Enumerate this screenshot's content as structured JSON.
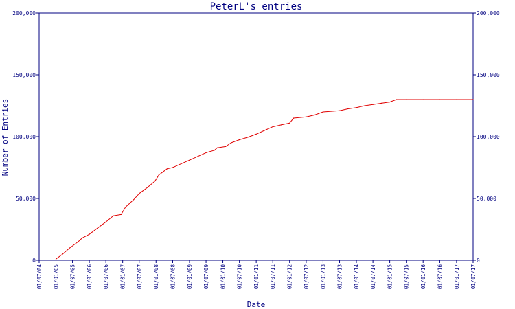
{
  "chart_data": {
    "type": "line",
    "title": "PeterL's entries",
    "xlabel": "Date",
    "ylabel": "Number of Entries",
    "ylim": [
      0,
      200000
    ],
    "xlim": [
      "2004-07-01",
      "2017-07-01"
    ],
    "y_ticks": [
      {
        "value": 0,
        "label": "0"
      },
      {
        "value": 50000,
        "label": "50,000"
      },
      {
        "value": 100000,
        "label": "100,000"
      },
      {
        "value": 150000,
        "label": "150,000"
      },
      {
        "value": 200000,
        "label": "200,000"
      }
    ],
    "x_ticks": [
      {
        "value": "2004-07-01",
        "label": "01/07/04"
      },
      {
        "value": "2005-01-01",
        "label": "01/01/05"
      },
      {
        "value": "2005-07-01",
        "label": "01/07/05"
      },
      {
        "value": "2006-01-01",
        "label": "01/01/06"
      },
      {
        "value": "2006-07-01",
        "label": "01/07/06"
      },
      {
        "value": "2007-01-01",
        "label": "01/01/07"
      },
      {
        "value": "2007-07-01",
        "label": "01/07/07"
      },
      {
        "value": "2008-01-01",
        "label": "01/01/08"
      },
      {
        "value": "2008-07-01",
        "label": "01/07/08"
      },
      {
        "value": "2009-01-01",
        "label": "01/01/09"
      },
      {
        "value": "2009-07-01",
        "label": "01/07/09"
      },
      {
        "value": "2010-01-01",
        "label": "01/01/10"
      },
      {
        "value": "2010-07-01",
        "label": "01/07/10"
      },
      {
        "value": "2011-01-01",
        "label": "01/01/11"
      },
      {
        "value": "2011-07-01",
        "label": "01/07/11"
      },
      {
        "value": "2012-01-01",
        "label": "01/01/12"
      },
      {
        "value": "2012-07-01",
        "label": "01/07/12"
      },
      {
        "value": "2013-01-01",
        "label": "01/01/13"
      },
      {
        "value": "2013-07-01",
        "label": "01/07/13"
      },
      {
        "value": "2014-01-01",
        "label": "01/01/14"
      },
      {
        "value": "2014-07-01",
        "label": "01/07/14"
      },
      {
        "value": "2015-01-01",
        "label": "01/01/15"
      },
      {
        "value": "2015-07-01",
        "label": "01/07/15"
      },
      {
        "value": "2016-01-01",
        "label": "01/01/16"
      },
      {
        "value": "2016-07-01",
        "label": "01/07/16"
      },
      {
        "value": "2017-01-01",
        "label": "01/01/17"
      },
      {
        "value": "2017-07-01",
        "label": "01/07/17"
      }
    ],
    "series": [
      {
        "color": "#e00000",
        "points": [
          [
            "2005-01-01",
            1000
          ],
          [
            "2005-03-15",
            5000
          ],
          [
            "2005-06-01",
            10000
          ],
          [
            "2005-09-01",
            15000
          ],
          [
            "2005-10-15",
            18000
          ],
          [
            "2006-01-01",
            21000
          ],
          [
            "2006-04-01",
            26000
          ],
          [
            "2006-07-01",
            31000
          ],
          [
            "2006-09-20",
            36000
          ],
          [
            "2006-12-15",
            37000
          ],
          [
            "2007-02-01",
            43000
          ],
          [
            "2007-05-01",
            49000
          ],
          [
            "2007-07-01",
            54000
          ],
          [
            "2007-10-01",
            59000
          ],
          [
            "2007-12-20",
            64000
          ],
          [
            "2008-02-01",
            69000
          ],
          [
            "2008-05-01",
            74000
          ],
          [
            "2008-07-01",
            75000
          ],
          [
            "2008-10-01",
            78000
          ],
          [
            "2009-01-01",
            81000
          ],
          [
            "2009-04-01",
            84000
          ],
          [
            "2009-07-01",
            87000
          ],
          [
            "2009-10-01",
            89000
          ],
          [
            "2009-11-01",
            91000
          ],
          [
            "2010-02-01",
            92000
          ],
          [
            "2010-04-01",
            95000
          ],
          [
            "2010-07-01",
            97500
          ],
          [
            "2010-10-01",
            99500
          ],
          [
            "2011-01-01",
            102000
          ],
          [
            "2011-04-01",
            105000
          ],
          [
            "2011-07-01",
            108000
          ],
          [
            "2011-10-01",
            109500
          ],
          [
            "2012-01-01",
            111000
          ],
          [
            "2012-02-15",
            115000
          ],
          [
            "2012-07-01",
            116000
          ],
          [
            "2012-10-01",
            117500
          ],
          [
            "2013-01-01",
            120000
          ],
          [
            "2013-07-01",
            121000
          ],
          [
            "2013-10-01",
            122500
          ],
          [
            "2014-01-01",
            123500
          ],
          [
            "2014-04-01",
            125000
          ],
          [
            "2014-07-01",
            126000
          ],
          [
            "2014-10-01",
            127000
          ],
          [
            "2015-01-01",
            128000
          ],
          [
            "2015-03-15",
            130000
          ],
          [
            "2015-07-01",
            130000
          ],
          [
            "2016-01-01",
            130000
          ],
          [
            "2016-07-01",
            130000
          ],
          [
            "2017-01-01",
            130000
          ],
          [
            "2017-07-01",
            130000
          ]
        ]
      }
    ],
    "grid": false,
    "legend": "none",
    "colors": {
      "axis": "#000080",
      "text": "#000080",
      "line": "#e00000",
      "background": "#ffffff"
    }
  }
}
